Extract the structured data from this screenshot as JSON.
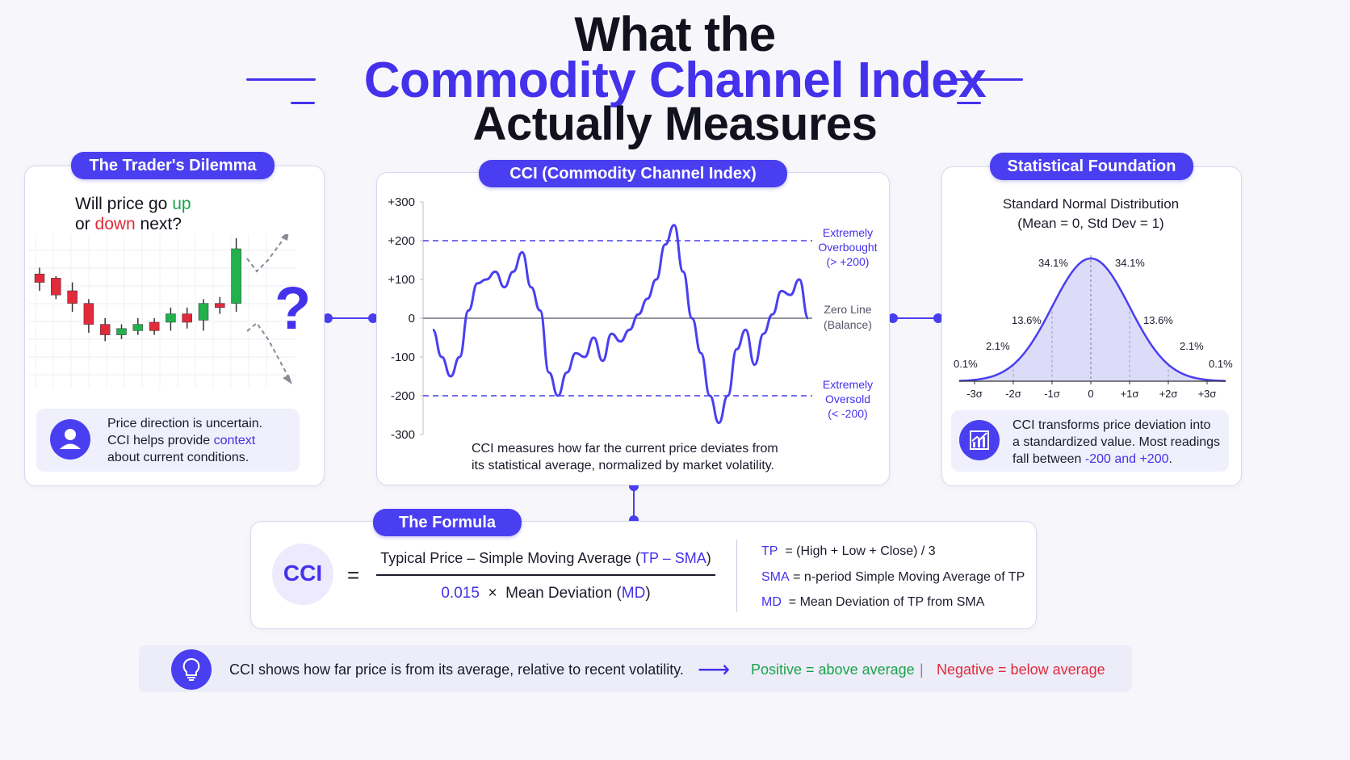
{
  "title": {
    "line1": "What the",
    "line2": "Commodity Channel Index",
    "line3": "Actually Measures"
  },
  "colors": {
    "accent": "#4a3ff0",
    "up": "#1aa34a",
    "down": "#e12a3a"
  },
  "left_panel": {
    "header": "The Trader's Dilemma",
    "question_a": "Will price go ",
    "question_up": "up",
    "question_b": "or ",
    "question_down": "down",
    "question_c": " next?",
    "question_mark": "?",
    "note_line1": "Price direction is uncertain.",
    "note_line2a": "CCI helps provide ",
    "note_line2b": "context",
    "note_line3": "about current conditions.",
    "note_icon": "user-icon",
    "candles": [
      {
        "o": 58,
        "c": 54,
        "h": 61,
        "l": 50,
        "up": false
      },
      {
        "o": 56,
        "c": 48,
        "h": 57,
        "l": 46,
        "up": false
      },
      {
        "o": 50,
        "c": 44,
        "h": 54,
        "l": 40,
        "up": false
      },
      {
        "o": 44,
        "c": 34,
        "h": 46,
        "l": 30,
        "up": false
      },
      {
        "o": 34,
        "c": 29,
        "h": 37,
        "l": 26,
        "up": false
      },
      {
        "o": 29,
        "c": 32,
        "h": 34,
        "l": 27,
        "up": true
      },
      {
        "o": 31,
        "c": 34,
        "h": 37,
        "l": 29,
        "up": true
      },
      {
        "o": 35,
        "c": 31,
        "h": 37,
        "l": 29,
        "up": false
      },
      {
        "o": 35,
        "c": 39,
        "h": 42,
        "l": 31,
        "up": true
      },
      {
        "o": 39,
        "c": 35,
        "h": 42,
        "l": 32,
        "up": false
      },
      {
        "o": 36,
        "c": 44,
        "h": 46,
        "l": 31,
        "up": true
      },
      {
        "o": 44,
        "c": 42,
        "h": 47,
        "l": 39,
        "up": false
      },
      {
        "o": 44,
        "c": 70,
        "h": 75,
        "l": 40,
        "up": true
      }
    ]
  },
  "center_panel": {
    "header": "CCI (Commodity Channel Index)",
    "overbought_1": "Extremely",
    "overbought_2": "Overbought",
    "overbought_3": "(> +200)",
    "zero_1": "Zero Line",
    "zero_2": "(Balance)",
    "oversold_1": "Extremely",
    "oversold_2": "Oversold",
    "oversold_3": "(< -200)",
    "caption_1": "CCI measures how far the current price deviates from",
    "caption_2": "its statistical average, normalized by market volatility."
  },
  "chart_data": {
    "type": "line",
    "ylim": [
      -300,
      300
    ],
    "yticks": [
      "+300",
      "+200",
      "+100",
      "0",
      "-100",
      "-200",
      "-300"
    ],
    "ytick_values": [
      300,
      200,
      100,
      0,
      -100,
      -200,
      -300
    ],
    "thresholds": [
      200,
      -200
    ],
    "series": [
      {
        "values": [
          -30,
          -100,
          -150,
          -100,
          20,
          90,
          100,
          120,
          80,
          120,
          170,
          80,
          20,
          -140,
          -200,
          -140,
          -90,
          -100,
          -50,
          -110,
          -40,
          -60,
          -30,
          10,
          50,
          100,
          190,
          240,
          120,
          0,
          -90,
          -200,
          -270,
          -200,
          -80,
          -30,
          -120,
          -40,
          10,
          70,
          60,
          100,
          0
        ]
      }
    ]
  },
  "right_panel": {
    "header": "Statistical Foundation",
    "subtitle_1": "Standard Normal Distribution",
    "subtitle_2": "(Mean = 0, Std Dev = 1)",
    "pct_341_left": "34.1%",
    "pct_341_right": "34.1%",
    "pct_136_left": "13.6%",
    "pct_136_right": "13.6%",
    "pct_21_left": "2.1%",
    "pct_21_right": "2.1%",
    "pct_01_left": "0.1%",
    "pct_01_right": "0.1%",
    "xticks": [
      "-3σ",
      "-2σ",
      "-1σ",
      "0",
      "+1σ",
      "+2σ",
      "+3σ"
    ],
    "note_line1": "CCI transforms price deviation into",
    "note_line2": "a standardized value. Most readings",
    "note_line3a": "fall between ",
    "note_line3b": "-200 and +200",
    "note_line3c": ".",
    "note_icon": "chart-icon"
  },
  "formula": {
    "header": "The Formula",
    "lhs": "CCI",
    "equals": "=",
    "numerator_a": "Typical Price – Simple Moving Average (",
    "numerator_b": "TP – SMA",
    "numerator_c": ")",
    "den_const": "0.015",
    "den_times": "×",
    "den_a": "Mean Deviation (",
    "den_b": "MD",
    "den_c": ")",
    "def_tp_key": "TP",
    "def_tp_val": "= (High + Low + Close) / 3",
    "def_sma_key": "SMA",
    "def_sma_val": "= n-period Simple Moving Average of TP",
    "def_md_key": "MD",
    "def_md_val": "= Mean Deviation of TP from SMA"
  },
  "footer": {
    "icon": "lightbulb-icon",
    "text": "CCI shows how far price is from its average, relative to recent volatility.",
    "arrow": "⟶",
    "positive": "Positive = above average",
    "separator": "|",
    "negative": "Negative = below average"
  }
}
